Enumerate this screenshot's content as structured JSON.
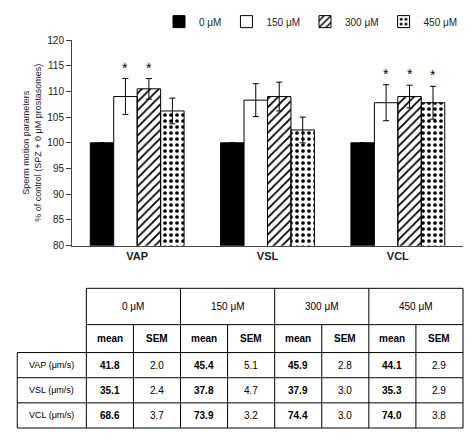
{
  "chart_data": [
    {
      "type": "bar",
      "categories": [
        "VAP",
        "VSL",
        "VCL"
      ],
      "ylabel": "Sperm motion parameters\n% of control (SPZ + 0 μM prostasomes)",
      "series": [
        {
          "name": "0 μM",
          "color": "black",
          "values": [
            100,
            100,
            100
          ],
          "errors": [
            0,
            0,
            0
          ]
        },
        {
          "name": "150 μM",
          "color": "white",
          "values": [
            109.0,
            108.3,
            107.8
          ],
          "errors": [
            3.5,
            3.2,
            3.5
          ]
        },
        {
          "name": "300 μM",
          "color": "white",
          "marker": "diagonal",
          "values": [
            110.5,
            109.0,
            109.0
          ],
          "errors": [
            2.0,
            2.8,
            2.2
          ]
        },
        {
          "name": "450 μM",
          "color": "white",
          "marker": "dots",
          "values": [
            106.2,
            102.5,
            107.8
          ],
          "errors": [
            2.5,
            2.5,
            3.2
          ]
        }
      ],
      "annotations": [
        {
          "text": "*",
          "category": "VAP",
          "series": "150 μM"
        },
        {
          "text": "*",
          "category": "VAP",
          "series": "300 μM"
        },
        {
          "text": "*",
          "category": "VCL",
          "series": "150 μM"
        },
        {
          "text": "*",
          "category": "VCL",
          "series": "300 μM"
        },
        {
          "text": "*",
          "category": "VCL",
          "series": "450 μM"
        }
      ],
      "ylim": [
        80,
        120
      ],
      "yticks": [
        80,
        85,
        90,
        95,
        100,
        105,
        110,
        115,
        120
      ],
      "grid": false,
      "legend": "upper right"
    },
    {
      "type": "table",
      "categories": [
        "VAP (μm/s)",
        "VSL (μm/s)",
        "VCL (μm/s)"
      ],
      "columns": [
        "mean",
        "SEM"
      ],
      "series": [
        {
          "name": "0 μM",
          "values": [
            41.8,
            35.1,
            68.6
          ],
          "errors": [
            {
              "value": 2.0,
              "label": "2.0"
            },
            2.4,
            3.7
          ]
        },
        {
          "name": "150 μM",
          "values": [
            45.4,
            37.8,
            73.9
          ],
          "errors": [
            5.1,
            4.7,
            3.2
          ]
        },
        {
          "name": "300 μM",
          "values": [
            45.9,
            37.9,
            74.4
          ],
          "errors": [
            2.8,
            {
              "value": 3.0,
              "label": "3.0"
            },
            {
              "value": 3.0,
              "label": "3.0"
            }
          ]
        },
        {
          "name": "450 μM",
          "values": [
            44.1,
            35.3,
            {
              "value": 74.0,
              "label": "74.0"
            }
          ],
          "errors": [
            2.9,
            2.9,
            3.8
          ]
        }
      ]
    }
  ]
}
